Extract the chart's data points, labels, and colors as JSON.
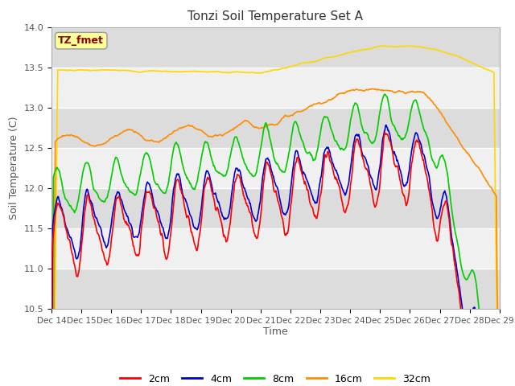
{
  "title": "Tonzi Soil Temperature Set A",
  "ylabel": "Soil Temperature (C)",
  "xlabel": "Time",
  "annotation": "TZ_fmet",
  "annotation_color": "#8B0000",
  "annotation_bg": "#FFFF99",
  "ylim": [
    10.5,
    14.0
  ],
  "yticks": [
    10.5,
    11.0,
    11.5,
    12.0,
    12.5,
    13.0,
    13.5,
    14.0
  ],
  "xtick_labels": [
    "Dec 14",
    "Dec 15",
    "Dec 16",
    "Dec 17",
    "Dec 18",
    "Dec 19",
    "Dec 20",
    "Dec 21",
    "Dec 22",
    "Dec 23",
    "Dec 24",
    "Dec 25",
    "Dec 26",
    "Dec 27",
    "Dec 28",
    "Dec 29"
  ],
  "colors": {
    "2cm": "#FF0000",
    "4cm": "#0000CC",
    "8cm": "#00CC00",
    "16cm": "#FF8C00",
    "32cm": "#FFD700"
  },
  "linewidth": 1.2,
  "plot_bg_light": "#F0F0F0",
  "plot_bg_dark": "#DCDCDC",
  "grid_color": "#FFFFFF",
  "n_points": 720
}
